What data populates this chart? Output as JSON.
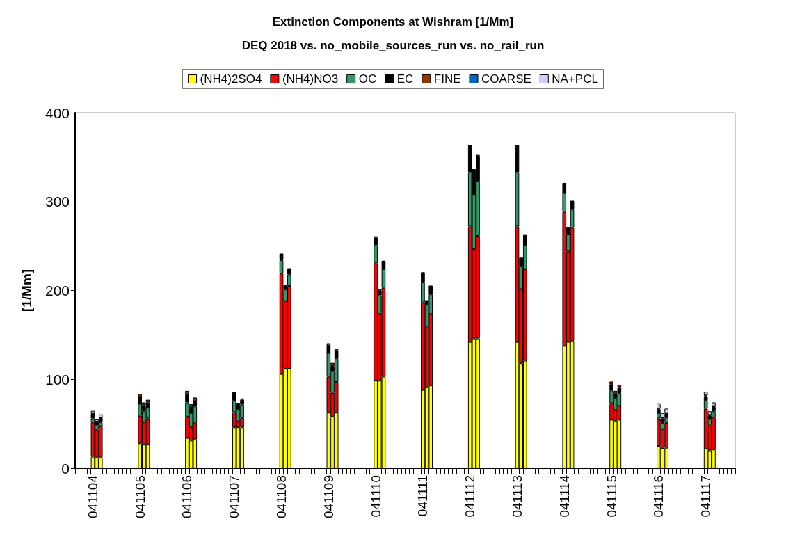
{
  "chart_data": {
    "type": "bar",
    "title": "Extinction Components at Wishram [1/Mm]",
    "subtitle": "DEQ 2018 vs. no_mobile_sources_run vs. no_rail_run",
    "ylabel": "[1/Mm]",
    "categories": [
      null,
      null,
      null,
      null,
      "041104",
      null,
      null,
      null,
      null,
      null,
      null,
      null,
      null,
      null,
      null,
      null,
      "041105",
      null,
      null,
      null,
      null,
      null,
      null,
      null,
      null,
      null,
      null,
      null,
      "041106",
      null,
      null,
      null,
      null,
      null,
      null,
      null,
      null,
      null,
      null,
      null,
      "041107",
      null,
      null,
      null,
      null,
      null,
      null,
      null,
      null,
      null,
      null,
      null,
      "041108",
      null,
      null,
      null,
      null,
      null,
      null,
      null,
      null,
      null,
      null,
      null,
      "041109",
      null,
      null,
      null,
      null,
      null,
      null,
      null,
      null,
      null,
      null,
      null,
      "041110",
      null,
      null,
      null,
      null,
      null,
      null,
      null,
      null,
      null,
      null,
      null,
      "041111",
      null,
      null,
      null,
      null,
      null,
      null,
      null,
      null,
      null,
      null,
      null,
      "041112",
      null,
      null,
      null,
      null,
      null,
      null,
      null,
      null,
      null,
      null,
      null,
      "041113",
      null,
      null,
      null,
      null,
      null,
      null,
      null,
      null,
      null,
      null,
      null,
      "041114",
      null,
      null,
      null,
      null,
      null,
      null,
      null,
      null,
      null,
      null,
      null,
      "041115",
      null,
      null,
      null,
      null,
      null,
      null,
      null,
      null,
      null,
      null,
      null,
      "041116",
      null,
      null,
      null,
      null,
      null,
      null,
      null,
      null,
      null,
      null,
      null,
      "041117",
      null,
      null,
      null,
      null,
      null,
      null,
      null
    ],
    "stacked": true,
    "ylim": [
      0,
      400
    ],
    "yticks": [
      0,
      100,
      200,
      300,
      400
    ],
    "grid": false,
    "legend": "top",
    "series": [
      {
        "name": "(NH4)2SO4",
        "color": "#ffff00",
        "values": [
          null,
          null,
          null,
          null,
          13,
          12,
          12,
          null,
          null,
          null,
          null,
          null,
          null,
          null,
          null,
          null,
          28,
          26.5,
          26.5,
          null,
          null,
          null,
          null,
          null,
          null,
          null,
          null,
          null,
          34,
          31,
          32.5,
          null,
          null,
          null,
          null,
          null,
          null,
          null,
          null,
          null,
          46,
          46,
          46,
          null,
          null,
          null,
          null,
          null,
          null,
          null,
          null,
          null,
          106,
          112,
          112,
          null,
          null,
          null,
          null,
          null,
          null,
          null,
          null,
          null,
          62.5,
          58,
          62.5,
          null,
          null,
          null,
          null,
          null,
          null,
          null,
          null,
          null,
          98.5,
          98.5,
          103,
          null,
          null,
          null,
          null,
          null,
          null,
          null,
          null,
          null,
          88,
          91,
          93,
          null,
          null,
          null,
          null,
          null,
          null,
          null,
          null,
          null,
          142,
          146,
          146,
          null,
          null,
          null,
          null,
          null,
          null,
          null,
          null,
          null,
          142,
          118,
          121,
          null,
          null,
          null,
          null,
          null,
          null,
          null,
          null,
          null,
          137.5,
          142,
          143.5,
          null,
          null,
          null,
          null,
          null,
          null,
          null,
          null,
          null,
          54.5,
          53.5,
          54.5,
          null,
          null,
          null,
          null,
          null,
          null,
          null,
          null,
          null,
          25,
          22,
          23,
          null,
          null,
          null,
          null,
          null,
          null,
          null,
          null,
          null,
          22,
          20,
          21,
          null,
          null,
          null,
          null,
          null
        ]
      },
      {
        "name": "(NH4)NO3",
        "color": "#ff0000",
        "values": [
          null,
          null,
          null,
          null,
          38.5,
          31.5,
          35.5,
          null,
          null,
          null,
          null,
          null,
          null,
          null,
          null,
          null,
          31,
          25.5,
          29.5,
          null,
          null,
          null,
          null,
          null,
          null,
          null,
          null,
          null,
          24,
          15,
          19,
          null,
          null,
          null,
          null,
          null,
          null,
          null,
          null,
          null,
          17,
          7.5,
          10.5,
          null,
          null,
          null,
          null,
          null,
          null,
          null,
          null,
          null,
          113,
          76,
          93,
          null,
          null,
          null,
          null,
          null,
          null,
          null,
          null,
          null,
          40.5,
          27,
          34.5,
          null,
          null,
          null,
          null,
          null,
          null,
          null,
          null,
          null,
          132,
          75,
          100,
          null,
          null,
          null,
          null,
          null,
          null,
          null,
          null,
          null,
          98.5,
          68.5,
          80.5,
          null,
          null,
          null,
          null,
          null,
          null,
          null,
          null,
          null,
          130,
          100.5,
          115.5,
          null,
          null,
          null,
          null,
          null,
          null,
          null,
          null,
          null,
          130,
          83.5,
          103,
          null,
          null,
          null,
          null,
          null,
          null,
          null,
          null,
          null,
          151,
          102,
          127,
          null,
          null,
          null,
          null,
          null,
          null,
          null,
          null,
          null,
          18.5,
          12,
          15.5,
          null,
          null,
          null,
          null,
          null,
          null,
          null,
          null,
          null,
          31,
          22,
          28,
          null,
          null,
          null,
          null,
          null,
          null,
          null,
          null,
          null,
          45,
          28,
          36,
          null,
          null,
          null,
          null,
          null
        ]
      },
      {
        "name": "OC",
        "color": "#339966",
        "values": [
          null,
          null,
          null,
          null,
          4.5,
          4.5,
          4,
          null,
          null,
          null,
          null,
          null,
          null,
          null,
          null,
          null,
          13.5,
          12,
          12,
          null,
          null,
          null,
          null,
          null,
          null,
          null,
          null,
          null,
          16,
          16,
          18,
          null,
          null,
          null,
          null,
          null,
          null,
          null,
          null,
          null,
          13,
          13,
          15,
          null,
          null,
          null,
          null,
          null,
          null,
          null,
          null,
          null,
          15,
          13,
          13,
          null,
          null,
          null,
          null,
          null,
          null,
          null,
          null,
          null,
          26.5,
          24,
          26.5,
          null,
          null,
          null,
          null,
          null,
          null,
          null,
          null,
          null,
          20.5,
          21,
          21,
          null,
          null,
          null,
          null,
          null,
          null,
          null,
          null,
          null,
          22.5,
          24.5,
          22,
          null,
          null,
          null,
          null,
          null,
          null,
          null,
          null,
          null,
          61,
          61,
          61,
          null,
          null,
          null,
          null,
          null,
          null,
          null,
          null,
          null,
          61,
          25.5,
          26.5,
          null,
          null,
          null,
          null,
          null,
          null,
          null,
          null,
          null,
          21,
          19,
          20.5,
          null,
          null,
          null,
          null,
          null,
          null,
          null,
          null,
          null,
          14.5,
          13.5,
          14.5,
          null,
          null,
          null,
          null,
          null,
          null,
          null,
          null,
          null,
          6,
          7,
          6,
          null,
          null,
          null,
          null,
          null,
          null,
          null,
          null,
          null,
          9,
          7,
          7,
          null,
          null,
          null,
          null,
          null
        ]
      },
      {
        "name": "EC",
        "color": "#000000",
        "values": [
          null,
          null,
          null,
          null,
          5.5,
          4,
          5,
          null,
          null,
          null,
          null,
          null,
          null,
          null,
          null,
          null,
          8,
          7,
          6,
          null,
          null,
          null,
          null,
          null,
          null,
          null,
          null,
          null,
          9,
          7,
          6,
          null,
          null,
          null,
          null,
          null,
          null,
          null,
          null,
          null,
          9.5,
          7,
          5.5,
          null,
          null,
          null,
          null,
          null,
          null,
          null,
          null,
          null,
          7.5,
          5,
          7,
          null,
          null,
          null,
          null,
          null,
          null,
          null,
          null,
          null,
          8,
          6,
          9,
          null,
          null,
          null,
          null,
          null,
          null,
          null,
          null,
          null,
          8.5,
          5.5,
          9.5,
          null,
          null,
          null,
          null,
          null,
          null,
          null,
          null,
          null,
          11.5,
          5,
          10,
          null,
          null,
          null,
          null,
          null,
          null,
          null,
          null,
          null,
          31,
          28,
          29,
          null,
          null,
          null,
          null,
          null,
          null,
          null,
          null,
          null,
          31,
          10,
          12,
          null,
          null,
          null,
          null,
          null,
          null,
          null,
          null,
          null,
          11.5,
          8,
          10,
          null,
          null,
          null,
          null,
          null,
          null,
          null,
          null,
          null,
          7,
          5,
          6.5,
          null,
          null,
          null,
          null,
          null,
          null,
          null,
          null,
          null,
          4,
          5,
          4,
          null,
          null,
          null,
          null,
          null,
          null,
          null,
          null,
          null,
          5,
          4,
          5,
          null,
          null,
          null,
          null,
          null
        ]
      },
      {
        "name": "FINE",
        "color": "#993300",
        "values": [
          null,
          null,
          null,
          null,
          0.5,
          0.5,
          0.5,
          null,
          null,
          null,
          null,
          null,
          null,
          null,
          null,
          null,
          3,
          3,
          3,
          null,
          null,
          null,
          null,
          null,
          null,
          null,
          null,
          null,
          4,
          3,
          4,
          null,
          null,
          null,
          null,
          null,
          null,
          null,
          null,
          null,
          0,
          0,
          1.5,
          null,
          null,
          null,
          null,
          null,
          null,
          null,
          null,
          null,
          0,
          0,
          0,
          null,
          null,
          null,
          null,
          null,
          null,
          null,
          null,
          null,
          3,
          3.5,
          2,
          null,
          null,
          null,
          null,
          null,
          null,
          null,
          null,
          null,
          1.5,
          1,
          0,
          null,
          null,
          null,
          null,
          null,
          null,
          null,
          null,
          null,
          0,
          0,
          0,
          null,
          null,
          null,
          null,
          null,
          null,
          null,
          null,
          null,
          0,
          1,
          1,
          null,
          null,
          null,
          null,
          null,
          null,
          null,
          null,
          null,
          0,
          0,
          0,
          null,
          null,
          null,
          null,
          null,
          null,
          null,
          null,
          null,
          0,
          0,
          0,
          null,
          null,
          null,
          null,
          null,
          null,
          null,
          null,
          null,
          3,
          3,
          3,
          null,
          null,
          null,
          null,
          null,
          null,
          null,
          null,
          null,
          1,
          1,
          1,
          null,
          null,
          null,
          null,
          null,
          null,
          null,
          null,
          null,
          1,
          1,
          1,
          null,
          null,
          null,
          null,
          null
        ]
      },
      {
        "name": "COARSE",
        "color": "#0066cc",
        "values": [
          null,
          null,
          null,
          null,
          0,
          0,
          0,
          null,
          null,
          null,
          null,
          null,
          null,
          null,
          null,
          null,
          0,
          0,
          0,
          null,
          null,
          null,
          null,
          null,
          null,
          null,
          null,
          null,
          0,
          0,
          0,
          null,
          null,
          null,
          null,
          null,
          null,
          null,
          null,
          null,
          0,
          0,
          0,
          null,
          null,
          null,
          null,
          null,
          null,
          null,
          null,
          null,
          0,
          0,
          0,
          null,
          null,
          null,
          null,
          null,
          null,
          null,
          null,
          null,
          0,
          0,
          0,
          null,
          null,
          null,
          null,
          null,
          null,
          null,
          null,
          null,
          0,
          0,
          0,
          null,
          null,
          null,
          null,
          null,
          null,
          null,
          null,
          null,
          0,
          0,
          0,
          null,
          null,
          null,
          null,
          null,
          null,
          null,
          null,
          null,
          0,
          0,
          0,
          null,
          null,
          null,
          null,
          null,
          null,
          null,
          null,
          null,
          0,
          0,
          0,
          null,
          null,
          null,
          null,
          null,
          null,
          null,
          null,
          null,
          0,
          0,
          0,
          null,
          null,
          null,
          null,
          null,
          null,
          null,
          null,
          null,
          0,
          0,
          0,
          null,
          null,
          null,
          null,
          null,
          null,
          null,
          null,
          null,
          0,
          0,
          0,
          null,
          null,
          null,
          null,
          null,
          null,
          null,
          null,
          null,
          0,
          0,
          0,
          null,
          null,
          null,
          null,
          null
        ]
      },
      {
        "name": "NA+PCL",
        "color": "#ccccff",
        "values": [
          null,
          null,
          null,
          null,
          2.5,
          3,
          3.5,
          null,
          null,
          null,
          null,
          null,
          null,
          null,
          null,
          null,
          0,
          0,
          0,
          null,
          null,
          null,
          null,
          null,
          null,
          null,
          null,
          null,
          0,
          0,
          0,
          null,
          null,
          null,
          null,
          null,
          null,
          null,
          null,
          null,
          0,
          0,
          0,
          null,
          null,
          null,
          null,
          null,
          null,
          null,
          null,
          null,
          0,
          0,
          0,
          null,
          null,
          null,
          null,
          null,
          null,
          null,
          null,
          null,
          0,
          0,
          0,
          null,
          null,
          null,
          null,
          null,
          null,
          null,
          null,
          null,
          0,
          0,
          0,
          null,
          null,
          null,
          null,
          null,
          null,
          null,
          null,
          null,
          0,
          0,
          0,
          null,
          null,
          null,
          null,
          null,
          null,
          null,
          null,
          null,
          0,
          0,
          0,
          null,
          null,
          null,
          null,
          null,
          null,
          null,
          null,
          null,
          0,
          0,
          0,
          null,
          null,
          null,
          null,
          null,
          null,
          null,
          null,
          null,
          0,
          0,
          0,
          null,
          null,
          null,
          null,
          null,
          null,
          null,
          null,
          null,
          0,
          0,
          0,
          null,
          null,
          null,
          null,
          null,
          null,
          null,
          null,
          null,
          6,
          5,
          5,
          null,
          null,
          null,
          null,
          null,
          null,
          null,
          null,
          null,
          4,
          4,
          4,
          null,
          null,
          null,
          null,
          null
        ]
      }
    ]
  }
}
